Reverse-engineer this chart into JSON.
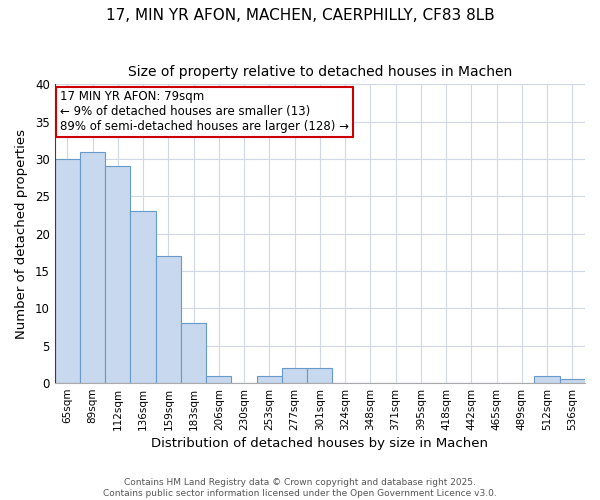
{
  "title": "17, MIN YR AFON, MACHEN, CAERPHILLY, CF83 8LB",
  "subtitle": "Size of property relative to detached houses in Machen",
  "xlabel": "Distribution of detached houses by size in Machen",
  "ylabel": "Number of detached properties",
  "bins": [
    "65sqm",
    "89sqm",
    "112sqm",
    "136sqm",
    "159sqm",
    "183sqm",
    "206sqm",
    "230sqm",
    "253sqm",
    "277sqm",
    "301sqm",
    "324sqm",
    "348sqm",
    "371sqm",
    "395sqm",
    "418sqm",
    "442sqm",
    "465sqm",
    "489sqm",
    "512sqm",
    "536sqm"
  ],
  "values": [
    30,
    31,
    29,
    23,
    17,
    8,
    1,
    0,
    1,
    2,
    2,
    0,
    0,
    0,
    0,
    0,
    0,
    0,
    0,
    1,
    0.5
  ],
  "bar_color": "#c8d8ee",
  "bar_edge_color": "#6699cc",
  "vline_color": "#cc0000",
  "ylim": [
    0,
    40
  ],
  "yticks": [
    0,
    5,
    10,
    15,
    20,
    25,
    30,
    35,
    40
  ],
  "annotation_text": "17 MIN YR AFON: 79sqm\n← 9% of detached houses are smaller (13)\n89% of semi-detached houses are larger (128) →",
  "annotation_box_color": "#cc0000",
  "footer_line1": "Contains HM Land Registry data © Crown copyright and database right 2025.",
  "footer_line2": "Contains public sector information licensed under the Open Government Licence v3.0.",
  "background_color": "#ffffff",
  "grid_color": "#d0d8e8",
  "title_fontsize": 11,
  "subtitle_fontsize": 10,
  "annotation_fontsize": 8.5
}
